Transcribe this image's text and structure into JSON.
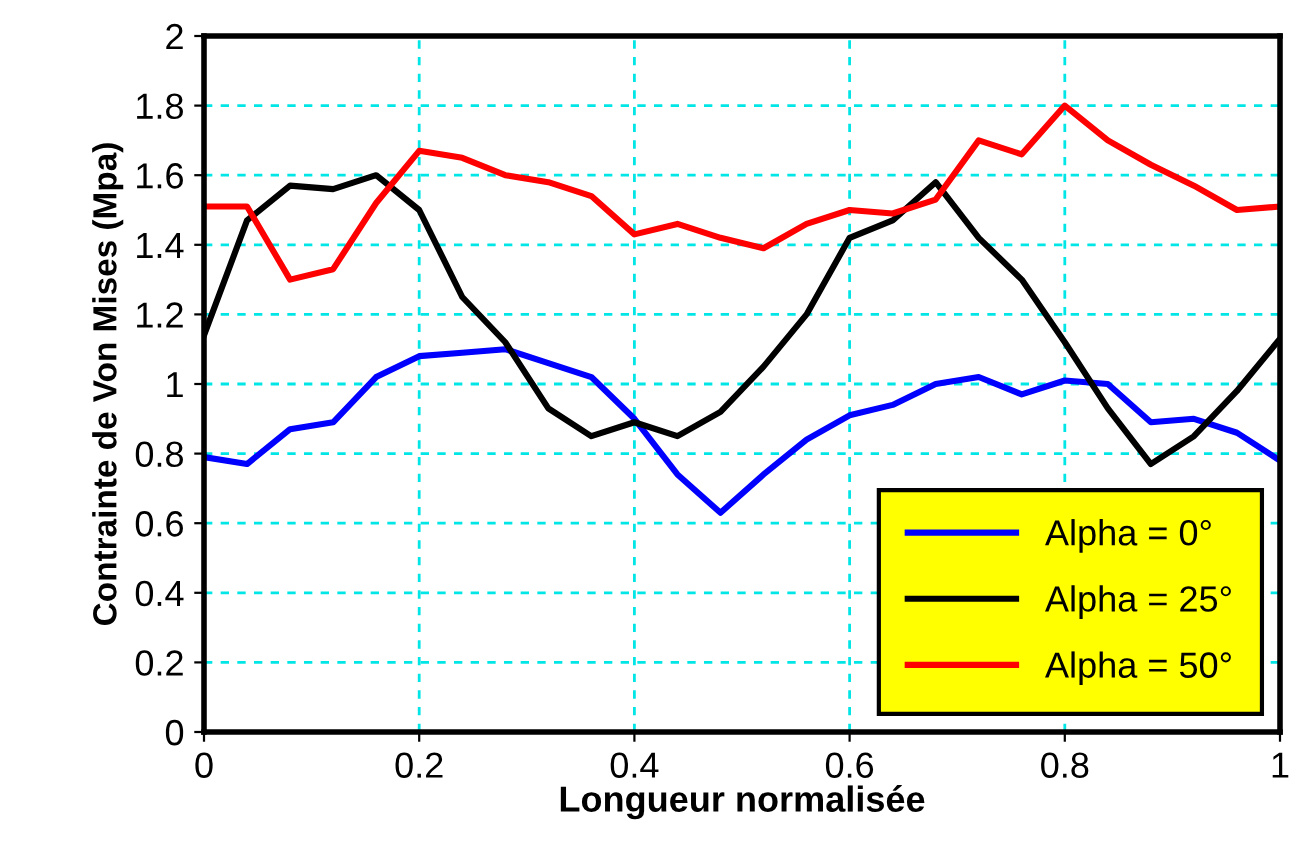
{
  "chart_data": {
    "type": "line",
    "xlabel": "Longueur normalisée",
    "ylabel": "Contrainte de Von Mises (Mpa)",
    "x": [
      0,
      0.04,
      0.08,
      0.12,
      0.16,
      0.2,
      0.24,
      0.28,
      0.32,
      0.36,
      0.4,
      0.44,
      0.48,
      0.52,
      0.56,
      0.6,
      0.64,
      0.68,
      0.72,
      0.76,
      0.8,
      0.84,
      0.88,
      0.92,
      0.96,
      1
    ],
    "series": [
      {
        "name": "Alpha = 0°",
        "color": "#0000ff",
        "values": [
          0.79,
          0.77,
          0.87,
          0.89,
          1.02,
          1.08,
          1.09,
          1.1,
          1.06,
          1.02,
          0.9,
          0.74,
          0.63,
          0.74,
          0.84,
          0.91,
          0.94,
          1.0,
          1.02,
          0.97,
          1.01,
          1.0,
          0.89,
          0.9,
          0.86,
          0.78
        ]
      },
      {
        "name": "Alpha = 25°",
        "color": "#000000",
        "values": [
          1.14,
          1.47,
          1.57,
          1.56,
          1.6,
          1.5,
          1.25,
          1.12,
          0.93,
          0.85,
          0.89,
          0.85,
          0.92,
          1.05,
          1.2,
          1.42,
          1.47,
          1.58,
          1.42,
          1.3,
          1.12,
          0.93,
          0.77,
          0.85,
          0.98,
          1.13
        ]
      },
      {
        "name": "Alpha = 50°",
        "color": "#ff0000",
        "values": [
          1.51,
          1.51,
          1.3,
          1.33,
          1.52,
          1.67,
          1.65,
          1.6,
          1.58,
          1.54,
          1.43,
          1.46,
          1.42,
          1.39,
          1.46,
          1.5,
          1.49,
          1.53,
          1.7,
          1.66,
          1.8,
          1.7,
          1.63,
          1.57,
          1.5,
          1.51
        ]
      }
    ],
    "xlim": [
      0,
      1
    ],
    "xticks": [
      0,
      0.2,
      0.4,
      0.6,
      0.8,
      1
    ],
    "ylim": [
      0,
      2
    ],
    "yticks": [
      0,
      0.2,
      0.4,
      0.6,
      0.8,
      1,
      1.2,
      1.4,
      1.6,
      1.8,
      2
    ],
    "grid": true,
    "legend": "bottom right",
    "marker": "none",
    "line_style": "solid"
  }
}
